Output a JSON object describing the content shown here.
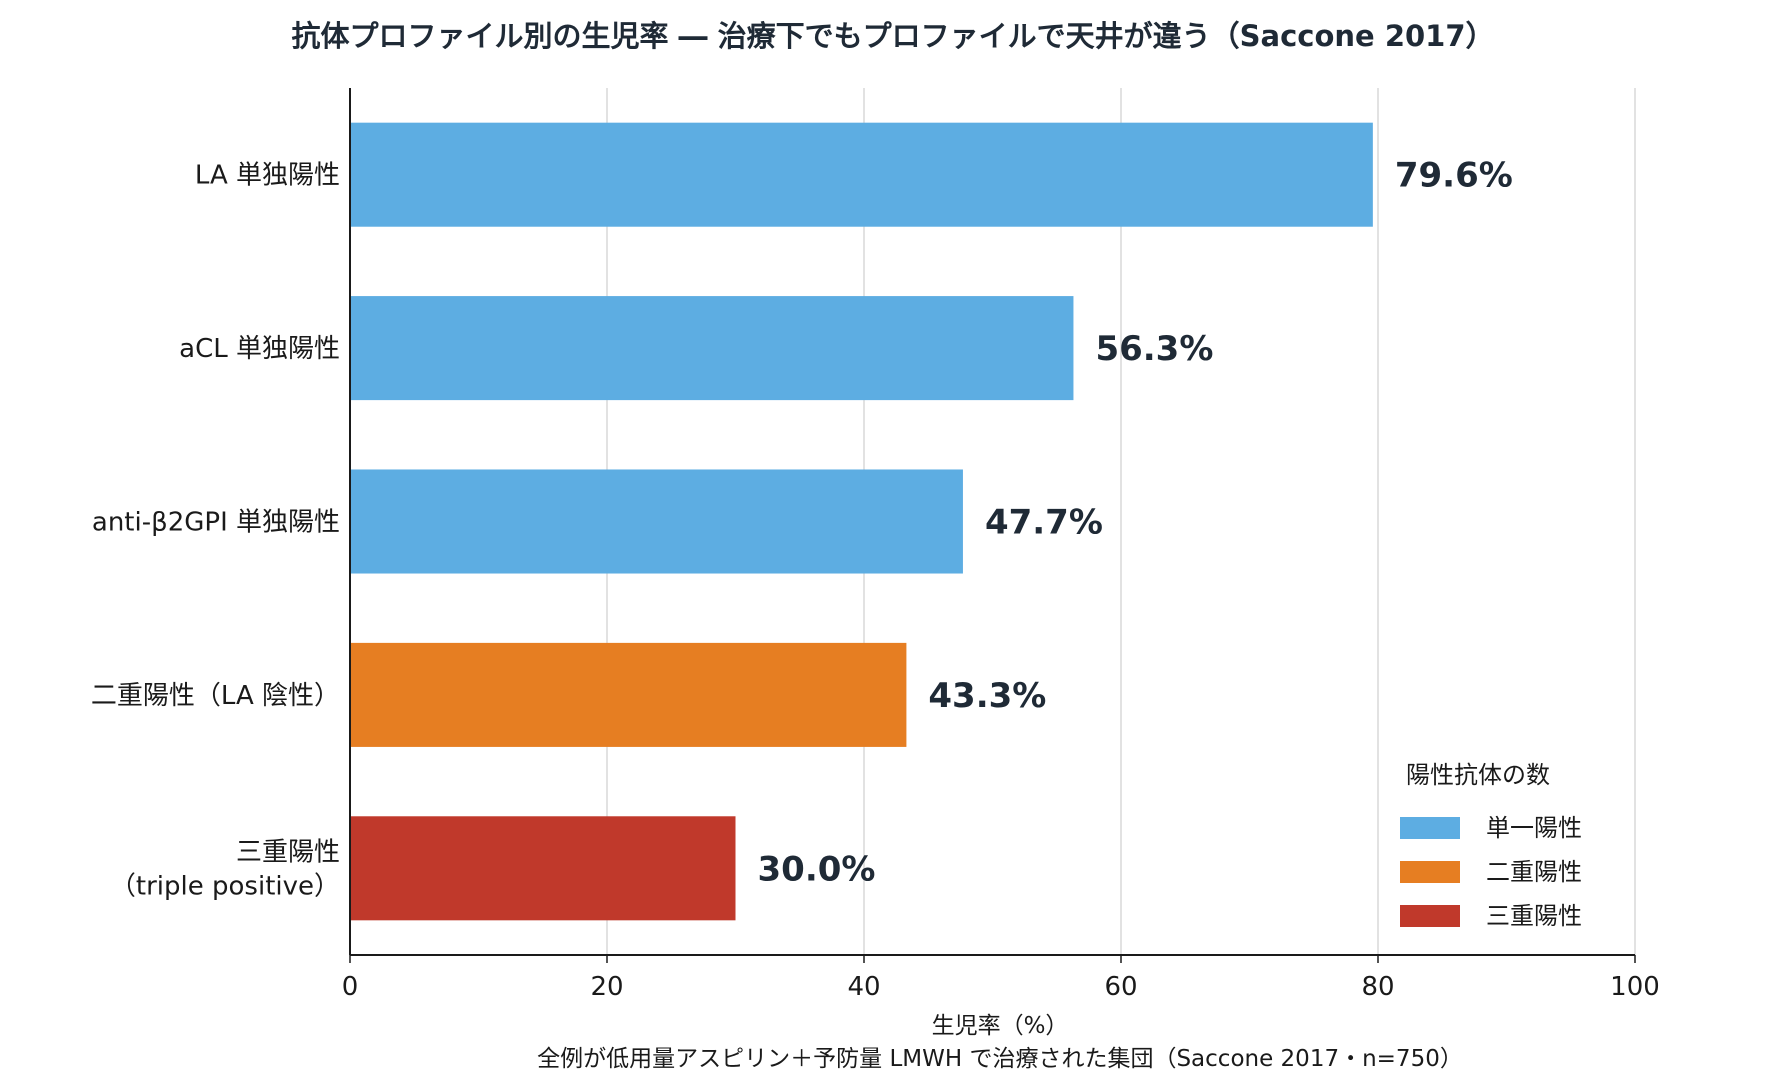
{
  "chart_data": {
    "type": "bar",
    "orientation": "horizontal",
    "title": "抗体プロファイル別の生児率 ― 治療下でもプロファイルで天井が違う（Saccone 2017）",
    "xlabel": "生児率（%）",
    "xlabel_note": "全例が低用量アスピリン＋予防量 LMWH で治療された集団（Saccone 2017・n=750）",
    "xlim": [
      0,
      100
    ],
    "xticks": [
      "0",
      "20",
      "40",
      "60",
      "80",
      "100"
    ],
    "grid": "vertical",
    "categories": [
      {
        "label": [
          "LA 単独陽性"
        ],
        "value": 79.6,
        "value_label": "79.6%",
        "group": "単一陽性"
      },
      {
        "label": [
          "aCL 単独陽性"
        ],
        "value": 56.3,
        "value_label": "56.3%",
        "group": "単一陽性"
      },
      {
        "label": [
          "anti-β2GPI 単独陽性"
        ],
        "value": 47.7,
        "value_label": "47.7%",
        "group": "単一陽性"
      },
      {
        "label": [
          "二重陽性（LA 陰性）"
        ],
        "value": 43.3,
        "value_label": "43.3%",
        "group": "二重陽性"
      },
      {
        "label": [
          "三重陽性",
          "（triple positive）"
        ],
        "value": 30.0,
        "value_label": "30.0%",
        "group": "三重陽性"
      }
    ],
    "legend": {
      "title": "陽性抗体の数",
      "placement": "lower-right",
      "entries": [
        {
          "label": "単一陽性",
          "color": "#5dade2"
        },
        {
          "label": "二重陽性",
          "color": "#e67e22"
        },
        {
          "label": "三重陽性",
          "color": "#c0392b"
        }
      ]
    }
  }
}
